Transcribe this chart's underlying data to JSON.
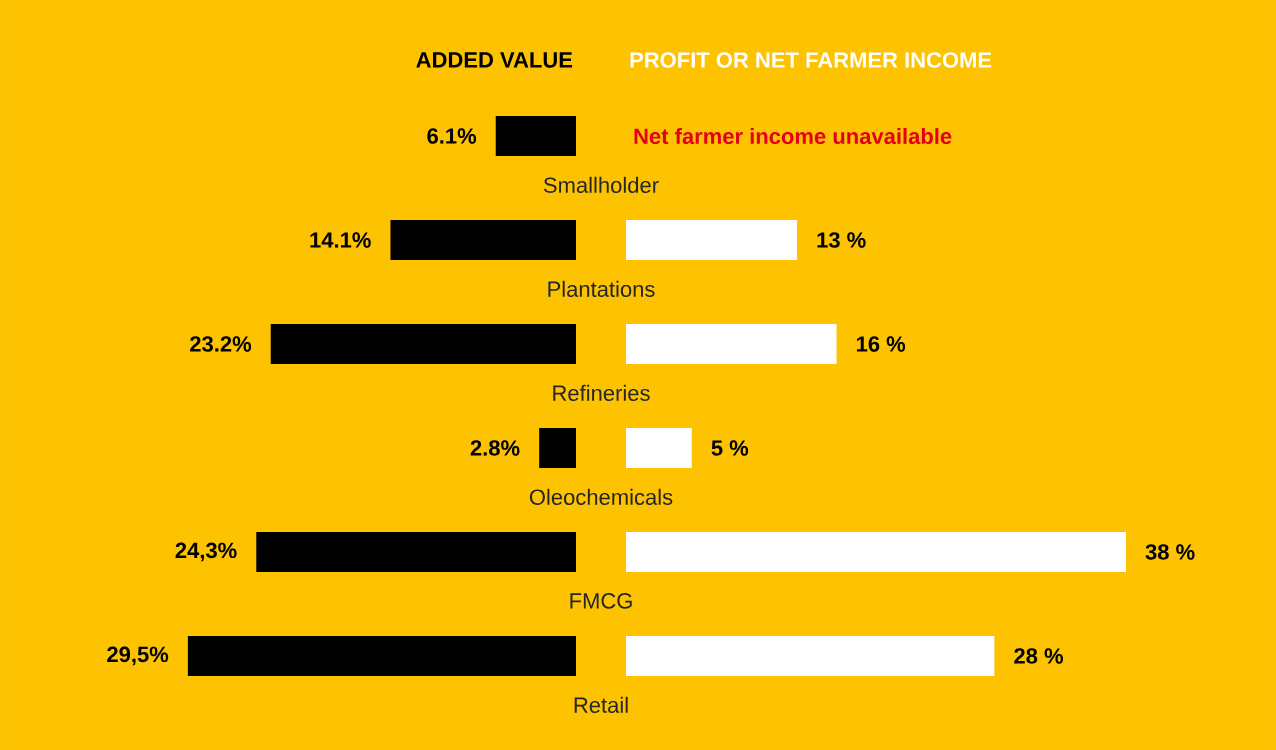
{
  "chart_data": [
    {
      "type": "bar",
      "orientation": "horizontal",
      "title": "ADDED VALUE",
      "categories": [
        "Smallholder",
        "Plantations",
        "Refineries",
        "Oleochemicals",
        "FMCG",
        "Retail"
      ],
      "color": "#000000",
      "values": [
        6.1,
        14.1,
        23.2,
        2.8,
        24.3,
        29.5
      ],
      "value_labels": [
        "6.1%",
        "14.1%",
        "23.2%",
        "2.8%",
        "24,3%",
        "29,5%"
      ]
    },
    {
      "type": "bar",
      "orientation": "horizontal",
      "title": "PROFIT OR NET FARMER INCOME",
      "categories": [
        null,
        null,
        null,
        null,
        null,
        null
      ],
      "color": "#ffffff",
      "values": [
        null,
        13,
        16,
        5,
        38,
        28
      ],
      "value_labels": [
        null,
        "13 %",
        "16 %",
        "5 %",
        "38 %",
        "28 %"
      ],
      "annotations": [
        "Net farmer income unavailable"
      ]
    }
  ]
}
